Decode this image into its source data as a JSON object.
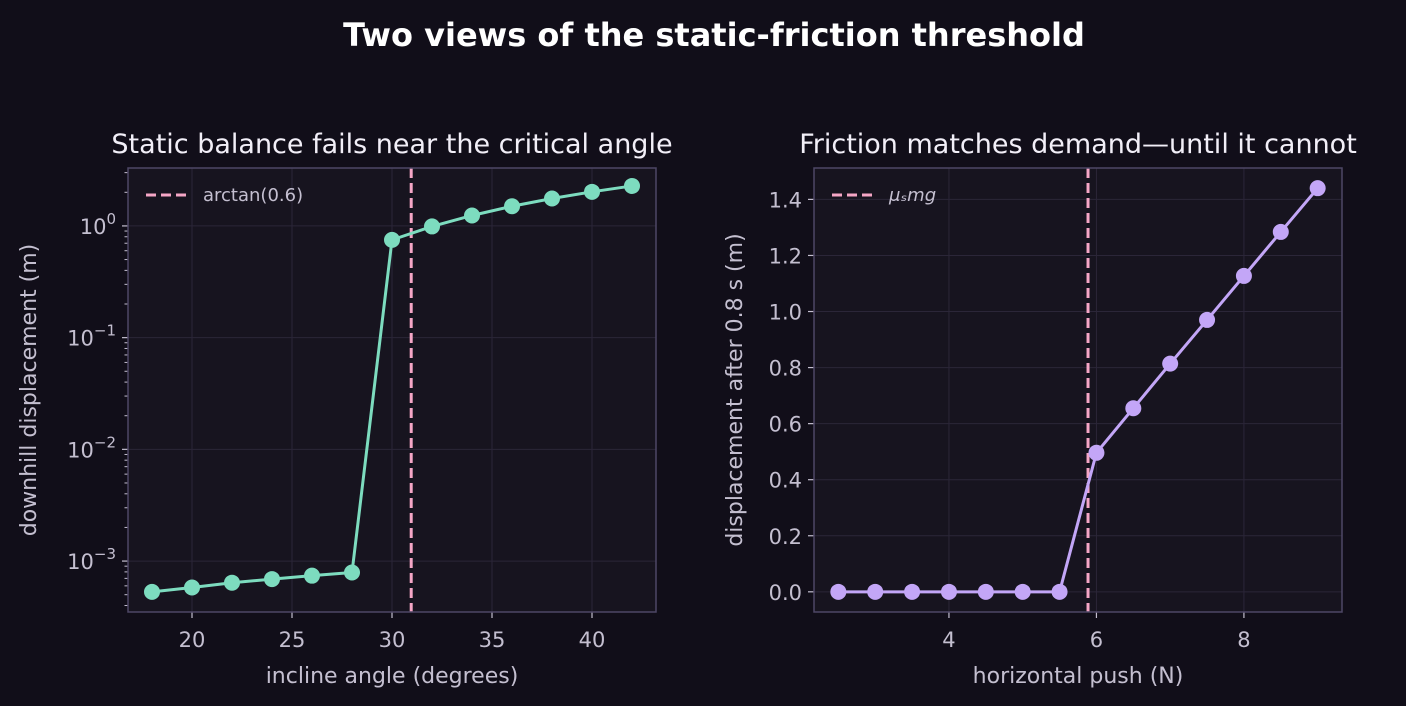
{
  "suptitle": "Two views of the static-friction threshold",
  "colors": {
    "background": "#110e19",
    "axes_face": "#17141f",
    "spine": "#4e4766",
    "grid": "#2b2638",
    "text": "#c4bfd0",
    "threshold": "#f5a6c6"
  },
  "chart_data": [
    {
      "type": "line",
      "title": "Static balance fails near the critical angle",
      "xlabel": "incline angle (degrees)",
      "ylabel": "downhill displacement (m)",
      "yscale": "log",
      "xlim": [
        16.8,
        43.2
      ],
      "ylim": [
        0.00035,
        3.3
      ],
      "xticks": [
        20,
        25,
        30,
        35,
        40
      ],
      "yticks": [
        {
          "base": "10",
          "exp": "0",
          "value": 1
        },
        {
          "base": "10",
          "exp": "−1",
          "value": 0.1
        },
        {
          "base": "10",
          "exp": "−2",
          "value": 0.01
        },
        {
          "base": "10",
          "exp": "−3",
          "value": 0.001
        }
      ],
      "grid": true,
      "legend": "upper left",
      "series": [
        {
          "color": "#7ddcbf",
          "x": [
            18,
            20,
            22,
            24,
            26,
            28,
            30,
            32,
            34,
            36,
            38,
            40,
            42
          ],
          "y": [
            0.00053,
            0.00058,
            0.00064,
            0.00069,
            0.00074,
            0.00079,
            0.75,
            0.99,
            1.24,
            1.5,
            1.76,
            2.02,
            2.28
          ]
        }
      ],
      "vline": {
        "x": 30.96,
        "label": "arctan(0.6)",
        "style": "dashed"
      }
    },
    {
      "type": "line",
      "title": "Friction matches demand—until it cannot",
      "xlabel": "horizontal push (N)",
      "ylabel": "displacement after 0.8 s (m)",
      "yscale": "linear",
      "xlim": [
        2.17,
        9.33
      ],
      "ylim": [
        -0.072,
        1.512
      ],
      "xticks": [
        4,
        6,
        8
      ],
      "yticks": [
        "0.0",
        "0.2",
        "0.4",
        "0.6",
        "0.8",
        "1.0",
        "1.2",
        "1.4"
      ],
      "grid": true,
      "legend": "upper left",
      "series": [
        {
          "color": "#c3a6f7",
          "x": [
            2.5,
            3.0,
            3.5,
            4.0,
            4.5,
            5.0,
            5.5,
            6.0,
            6.5,
            7.0,
            7.5,
            8.0,
            8.5,
            9.0
          ],
          "y": [
            0.0,
            0.0,
            0.0,
            0.0,
            0.0,
            0.0,
            0.0,
            0.496,
            0.655,
            0.814,
            0.97,
            1.127,
            1.284,
            1.44
          ]
        }
      ],
      "vline": {
        "x": 5.886,
        "label": "μₛmg",
        "style": "dashed"
      }
    }
  ]
}
